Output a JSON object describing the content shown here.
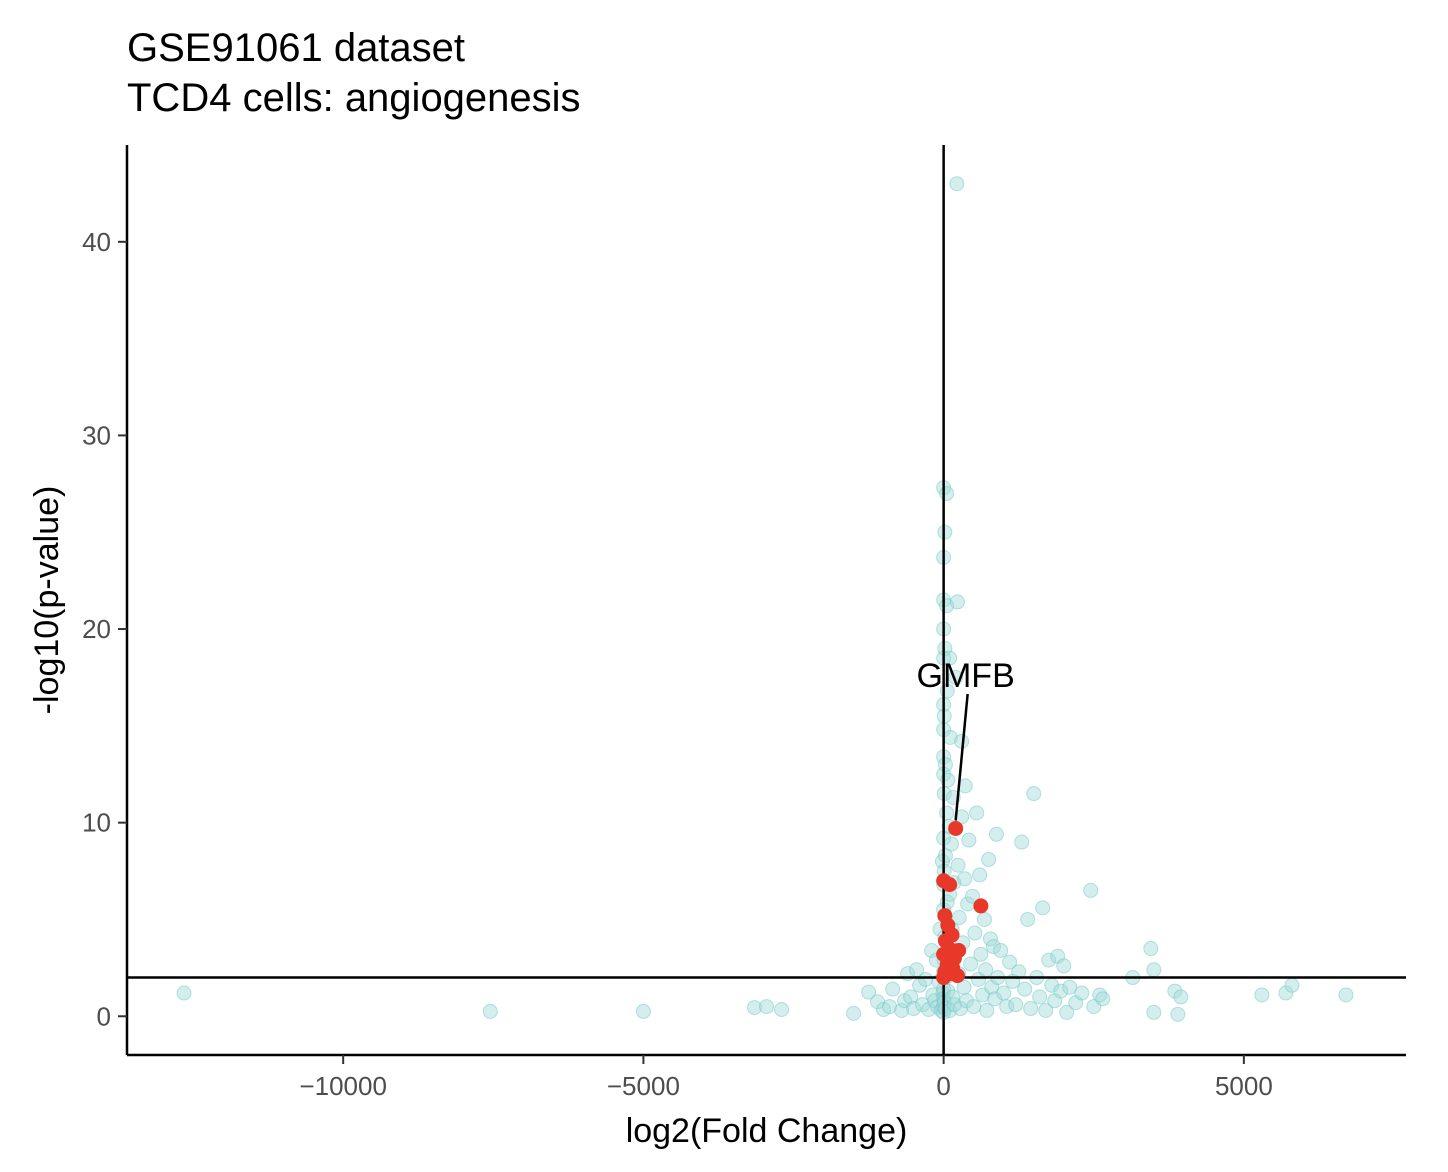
{
  "chart_data": {
    "type": "scatter",
    "title": "GSE91061 dataset",
    "subtitle": "TCD4 cells: angiogenesis",
    "xlabel": "log2(Fold Change)",
    "ylabel": "-log10(p-value)",
    "xlim": [
      -13600,
      7700
    ],
    "ylim": [
      -2.0,
      45.0
    ],
    "x_ticks": [
      -10000,
      -5000,
      0,
      5000
    ],
    "x_tick_labels": [
      "−10000",
      "−5000",
      "0",
      "5000"
    ],
    "y_ticks": [
      0,
      10,
      20,
      30,
      40
    ],
    "y_tick_labels": [
      "0",
      "10",
      "20",
      "30",
      "40"
    ],
    "hline": 2.0,
    "vline": 0,
    "grid": false,
    "colors": {
      "background": "#d0efee",
      "highlight": "#e8382a",
      "axis": "#000000"
    },
    "series": [
      {
        "role": "background",
        "points": [
          [
            -12650,
            1.2
          ],
          [
            -7550,
            0.25
          ],
          [
            -5000,
            0.25
          ],
          [
            -3150,
            0.45
          ],
          [
            -2950,
            0.5
          ],
          [
            -2700,
            0.35
          ],
          [
            -1500,
            0.15
          ],
          [
            -1250,
            1.25
          ],
          [
            -1100,
            0.75
          ],
          [
            -1000,
            0.35
          ],
          [
            -900,
            0.5
          ],
          [
            -850,
            1.4
          ],
          [
            -700,
            0.3
          ],
          [
            -650,
            0.8
          ],
          [
            -600,
            2.2
          ],
          [
            -550,
            1.0
          ],
          [
            -500,
            0.4
          ],
          [
            -450,
            2.4
          ],
          [
            -400,
            1.6
          ],
          [
            -350,
            0.6
          ],
          [
            -300,
            1.9
          ],
          [
            -250,
            0.35
          ],
          [
            -200,
            3.4
          ],
          [
            -180,
            1.1
          ],
          [
            -150,
            0.8
          ],
          [
            -120,
            2.9
          ],
          [
            -100,
            0.5
          ],
          [
            -80,
            1.8
          ],
          [
            -60,
            4.5
          ],
          [
            -40,
            0.3
          ],
          [
            -20,
            8.0
          ],
          [
            -10,
            1.2
          ],
          [
            0,
            0.2
          ],
          [
            0,
            0.5
          ],
          [
            0,
            0.9
          ],
          [
            0,
            1.4
          ],
          [
            0,
            2.3
          ],
          [
            0,
            3.2
          ],
          [
            0,
            5.5
          ],
          [
            0,
            6.8
          ],
          [
            0,
            9.2
          ],
          [
            0,
            12.5
          ],
          [
            0,
            13.4
          ],
          [
            0,
            14.8
          ],
          [
            0,
            16.1
          ],
          [
            0,
            18.5
          ],
          [
            0,
            20.0
          ],
          [
            0,
            21.5
          ],
          [
            0,
            23.7
          ],
          [
            0,
            27.3
          ],
          [
            10,
            0.7
          ],
          [
            10,
            2.9
          ],
          [
            10,
            7.5
          ],
          [
            10,
            11.5
          ],
          [
            10,
            15.5
          ],
          [
            20,
            4.1
          ],
          [
            20,
            25.0
          ],
          [
            20,
            19.0
          ],
          [
            30,
            0.4
          ],
          [
            30,
            13.0
          ],
          [
            30,
            8.3
          ],
          [
            40,
            2.0
          ],
          [
            50,
            27.0
          ],
          [
            50,
            21.2
          ],
          [
            50,
            10.5
          ],
          [
            60,
            5.9
          ],
          [
            60,
            16.8
          ],
          [
            70,
            1.3
          ],
          [
            70,
            12.2
          ],
          [
            80,
            3.7
          ],
          [
            90,
            9.8
          ],
          [
            100,
            0.3
          ],
          [
            100,
            6.3
          ],
          [
            100,
            18.5
          ],
          [
            110,
            14.4
          ],
          [
            120,
            2.5
          ],
          [
            130,
            8.9
          ],
          [
            140,
            4.5
          ],
          [
            150,
            1.0
          ],
          [
            160,
            11.3
          ],
          [
            170,
            6.9
          ],
          [
            180,
            0.6
          ],
          [
            180,
            3.1
          ],
          [
            200,
            17.5
          ],
          [
            220,
            43.0
          ],
          [
            230,
            21.4
          ],
          [
            240,
            7.8
          ],
          [
            250,
            2.2
          ],
          [
            260,
            5.1
          ],
          [
            280,
            0.4
          ],
          [
            300,
            14.2
          ],
          [
            300,
            10.3
          ],
          [
            320,
            3.8
          ],
          [
            340,
            1.5
          ],
          [
            350,
            7.1
          ],
          [
            360,
            11.9
          ],
          [
            380,
            0.8
          ],
          [
            400,
            5.8
          ],
          [
            420,
            9.1
          ],
          [
            450,
            2.7
          ],
          [
            480,
            6.2
          ],
          [
            500,
            0.5
          ],
          [
            520,
            4.3
          ],
          [
            550,
            10.5
          ],
          [
            580,
            1.9
          ],
          [
            600,
            7.3
          ],
          [
            620,
            3.2
          ],
          [
            650,
            1.1
          ],
          [
            680,
            5.0
          ],
          [
            700,
            2.4
          ],
          [
            720,
            0.3
          ],
          [
            750,
            8.1
          ],
          [
            780,
            4.0
          ],
          [
            800,
            1.5
          ],
          [
            830,
            3.6
          ],
          [
            850,
            0.9
          ],
          [
            880,
            9.4
          ],
          [
            900,
            2.0
          ],
          [
            950,
            3.4
          ],
          [
            1000,
            1.2
          ],
          [
            1050,
            0.5
          ],
          [
            1100,
            2.8
          ],
          [
            1150,
            1.8
          ],
          [
            1200,
            0.6
          ],
          [
            1250,
            2.3
          ],
          [
            1300,
            9.0
          ],
          [
            1350,
            1.4
          ],
          [
            1400,
            5.0
          ],
          [
            1450,
            0.4
          ],
          [
            1500,
            11.5
          ],
          [
            1550,
            2.0
          ],
          [
            1600,
            1.0
          ],
          [
            1650,
            5.6
          ],
          [
            1700,
            0.3
          ],
          [
            1750,
            2.9
          ],
          [
            1800,
            1.6
          ],
          [
            1850,
            0.8
          ],
          [
            1900,
            3.1
          ],
          [
            1950,
            1.3
          ],
          [
            2000,
            2.6
          ],
          [
            2050,
            0.2
          ],
          [
            2100,
            1.5
          ],
          [
            2200,
            0.7
          ],
          [
            2300,
            1.2
          ],
          [
            2450,
            6.5
          ],
          [
            2500,
            0.5
          ],
          [
            2600,
            1.1
          ],
          [
            2650,
            0.9
          ],
          [
            3150,
            2.0
          ],
          [
            3450,
            3.5
          ],
          [
            3500,
            2.4
          ],
          [
            3500,
            0.2
          ],
          [
            3850,
            1.3
          ],
          [
            3900,
            0.1
          ],
          [
            3950,
            1.0
          ],
          [
            5300,
            1.1
          ],
          [
            5700,
            1.2
          ],
          [
            5800,
            1.6
          ],
          [
            6700,
            1.1
          ]
        ]
      },
      {
        "role": "highlight",
        "points": [
          [
            200,
            9.7
          ],
          [
            0,
            7.0
          ],
          [
            100,
            6.8
          ],
          [
            620,
            5.7
          ],
          [
            20,
            5.2
          ],
          [
            70,
            4.7
          ],
          [
            140,
            4.2
          ],
          [
            30,
            3.9
          ],
          [
            90,
            3.5
          ],
          [
            250,
            3.4
          ],
          [
            0,
            3.2
          ],
          [
            180,
            3.0
          ],
          [
            60,
            2.7
          ],
          [
            150,
            2.5
          ],
          [
            20,
            2.3
          ],
          [
            100,
            2.2
          ],
          [
            230,
            2.1
          ],
          [
            0,
            2.0
          ]
        ]
      }
    ],
    "annotations": [
      {
        "label": "GMFB",
        "x": 200,
        "y": 9.7
      }
    ]
  }
}
